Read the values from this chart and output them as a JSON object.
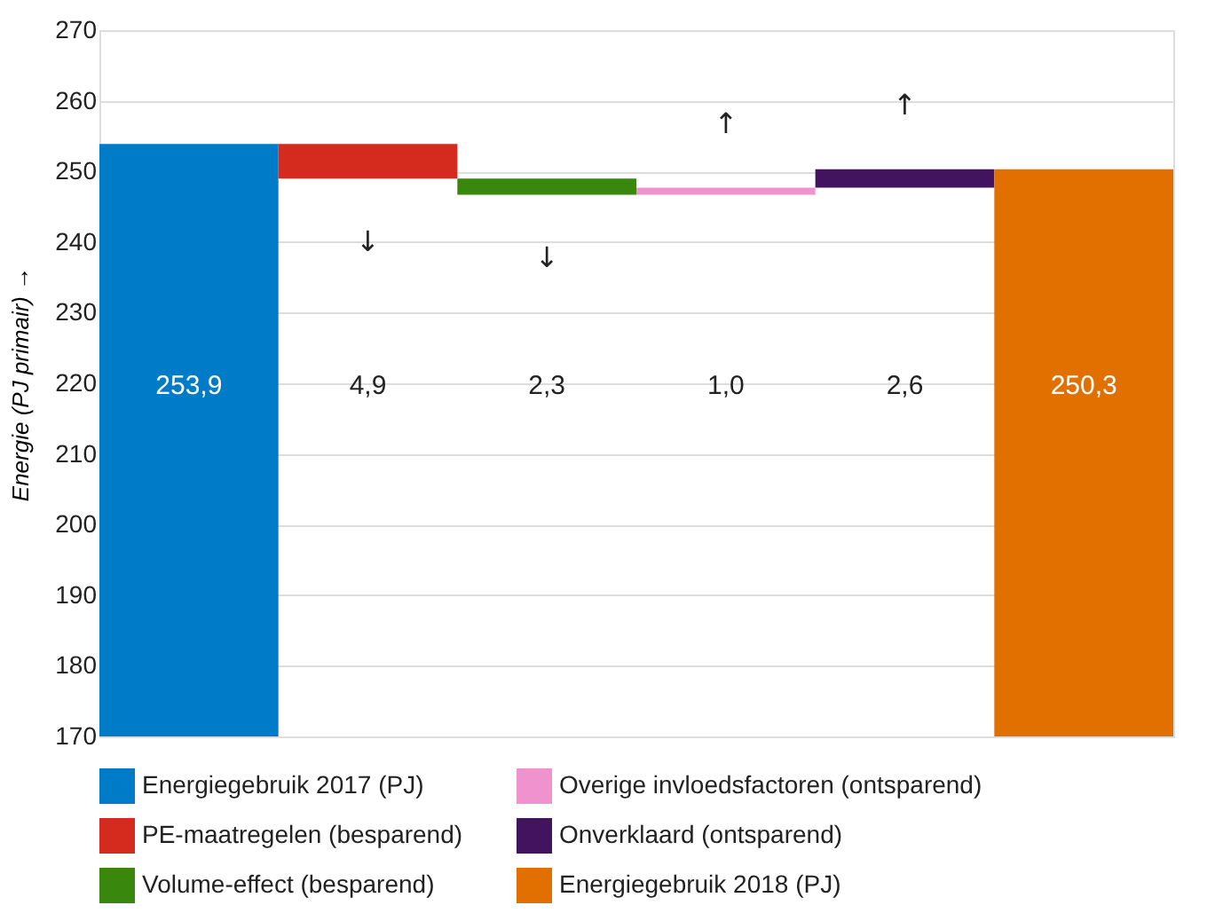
{
  "chart_data": {
    "type": "bar",
    "ylabel": "Energie (PJ primair) →",
    "categories": [
      null,
      null,
      null,
      null,
      null,
      null
    ],
    "series": [
      {
        "name": "Energiegebruik 2017 (PJ)",
        "color": "#007bc7",
        "values": [
          253.9,
          null,
          null,
          null,
          null,
          null
        ]
      },
      {
        "name": "PE-maatregelen (besparend)",
        "color": "#d52b1e",
        "values": [
          null,
          -4.9,
          null,
          null,
          null,
          null
        ],
        "base": [
          null,
          253.9,
          null,
          null,
          null,
          null
        ]
      },
      {
        "name": "Volume-effect (besparend)",
        "color": "#39870c",
        "values": [
          null,
          null,
          -2.3,
          null,
          null,
          null
        ],
        "base": [
          null,
          null,
          249.0,
          null,
          null,
          null
        ]
      },
      {
        "name": "Overige invloedsfactoren (ontsparend)",
        "color": "#f092cd",
        "values": [
          null,
          null,
          null,
          1.0,
          null,
          null
        ],
        "base": [
          null,
          null,
          null,
          246.7,
          null,
          null
        ]
      },
      {
        "name": "Onverklaard (ontsparend)",
        "color": "#42145f",
        "values": [
          null,
          null,
          null,
          null,
          2.6,
          null
        ],
        "base": [
          null,
          null,
          null,
          null,
          247.7,
          null
        ]
      },
      {
        "name": "Energiegebruik 2018 (PJ)",
        "color": "#e17000",
        "values": [
          null,
          null,
          null,
          null,
          null,
          250.3
        ]
      }
    ],
    "value_labels": [
      "253,9",
      "4,9",
      "2,3",
      "1,0",
      "2,6",
      "250,3"
    ],
    "annotations": [
      "↓",
      "↓",
      "↑",
      "↑"
    ],
    "ylim": [
      170,
      270
    ],
    "yticks": [
      170,
      180,
      190,
      200,
      210,
      220,
      230,
      240,
      250,
      260,
      270
    ],
    "grid": "y",
    "legend": "bottom",
    "tick_labels": "y"
  }
}
